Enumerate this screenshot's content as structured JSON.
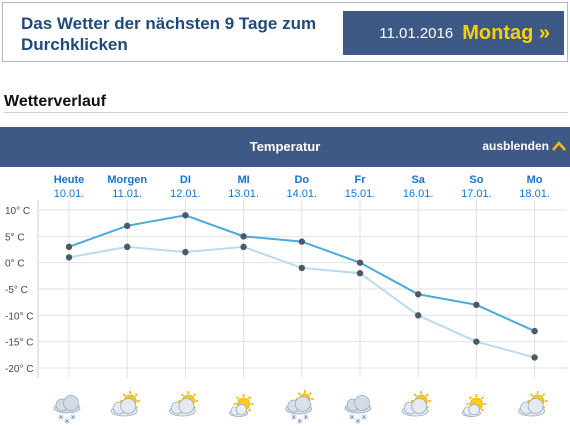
{
  "banner": {
    "title": "Das Wetter der nächsten 9 Tage zum Durchklicken",
    "date": "11.01.2016",
    "day": "Montag »"
  },
  "section": {
    "title": "Wetterverlauf"
  },
  "chart_header": {
    "title": "Temperatur",
    "toggle_label": "ausblenden"
  },
  "colors": {
    "header_bg": "#3e5985",
    "accent": "#fdd200",
    "link_blue": "#1a73c8",
    "series_max": "#4aaad8",
    "series_min": "#b9dceb"
  },
  "chart_data": {
    "type": "line",
    "categories": [
      "Heute",
      "Morgen",
      "DI",
      "MI",
      "Do",
      "Fr",
      "Sa",
      "So",
      "Mo"
    ],
    "dates": [
      "10.01.",
      "11.01.",
      "12.01.",
      "13.01.",
      "14.01.",
      "15.01.",
      "16.01.",
      "17.01.",
      "18.01."
    ],
    "series": [
      {
        "values": [
          3,
          7,
          9,
          5,
          4,
          0,
          -6,
          -8,
          -13
        ]
      },
      {
        "values": [
          1,
          3,
          2,
          3,
          -1,
          -2,
          -10,
          -15,
          -18
        ]
      }
    ],
    "ylim": [
      -20,
      10
    ],
    "yticks": [
      10,
      5,
      0,
      -5,
      -10,
      -15,
      -20
    ],
    "ytick_labels": [
      "10° C",
      "5° C",
      "0° C",
      "-5° C",
      "-10° C",
      "-15° C",
      "-20° C"
    ],
    "grid": true,
    "icons": [
      "cloud-snow-icon",
      "sun-cloud-icon",
      "sun-cloud-icon",
      "sun-icon",
      "sun-cloud-snow-icon",
      "cloud-snow-icon",
      "sun-cloud-icon",
      "sun-icon",
      "sun-cloud-icon"
    ]
  }
}
